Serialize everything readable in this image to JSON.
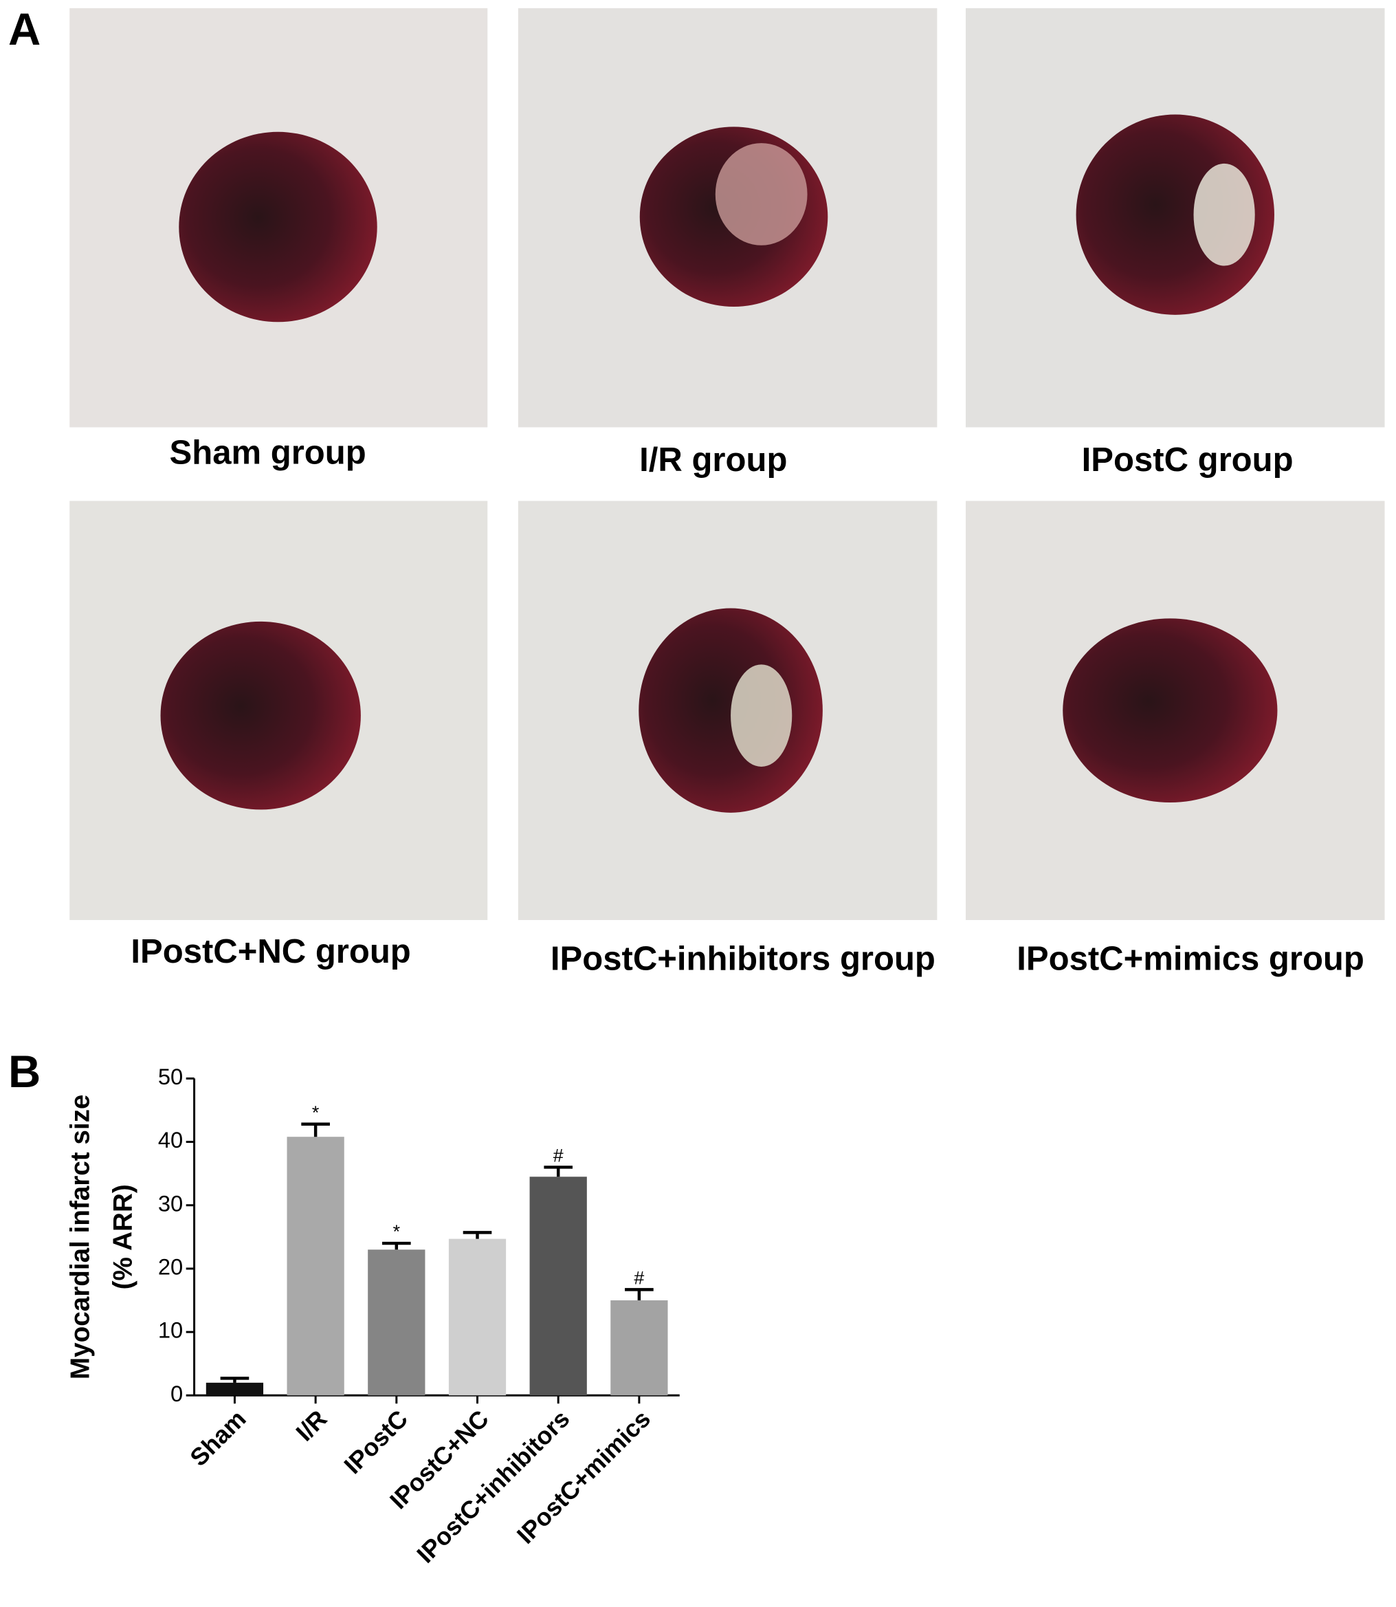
{
  "panels": {
    "a": {
      "label": "A",
      "captions": [
        "Sham group",
        "I/R group",
        "IPostC group",
        "IPostC+NC group",
        "IPostC+inhibitors group",
        "IPostC+mimics group"
      ]
    },
    "b": {
      "label": "B"
    }
  },
  "chart_data": {
    "type": "bar",
    "y_label": [
      "Myocardial infarct size",
      "(% ARR)"
    ],
    "categories": [
      "Sham",
      "I/R",
      "IPostC",
      "IPostC+NC",
      "IPostC+inhibitors",
      "IPostC+mimics"
    ],
    "values": [
      2,
      40.8,
      23,
      24.7,
      34.5,
      15
    ],
    "errors": [
      0.7,
      2,
      1,
      1,
      1.5,
      1.7
    ],
    "markers": [
      null,
      "*",
      "*",
      null,
      "#",
      "#"
    ],
    "colors": [
      "#111111",
      "#a9a9a9",
      "#858585",
      "#cfcfcf",
      "#555555",
      "#a3a3a3"
    ],
    "ylim": [
      0,
      50
    ],
    "yticks": [
      0,
      10,
      20,
      30,
      40,
      50
    ]
  }
}
